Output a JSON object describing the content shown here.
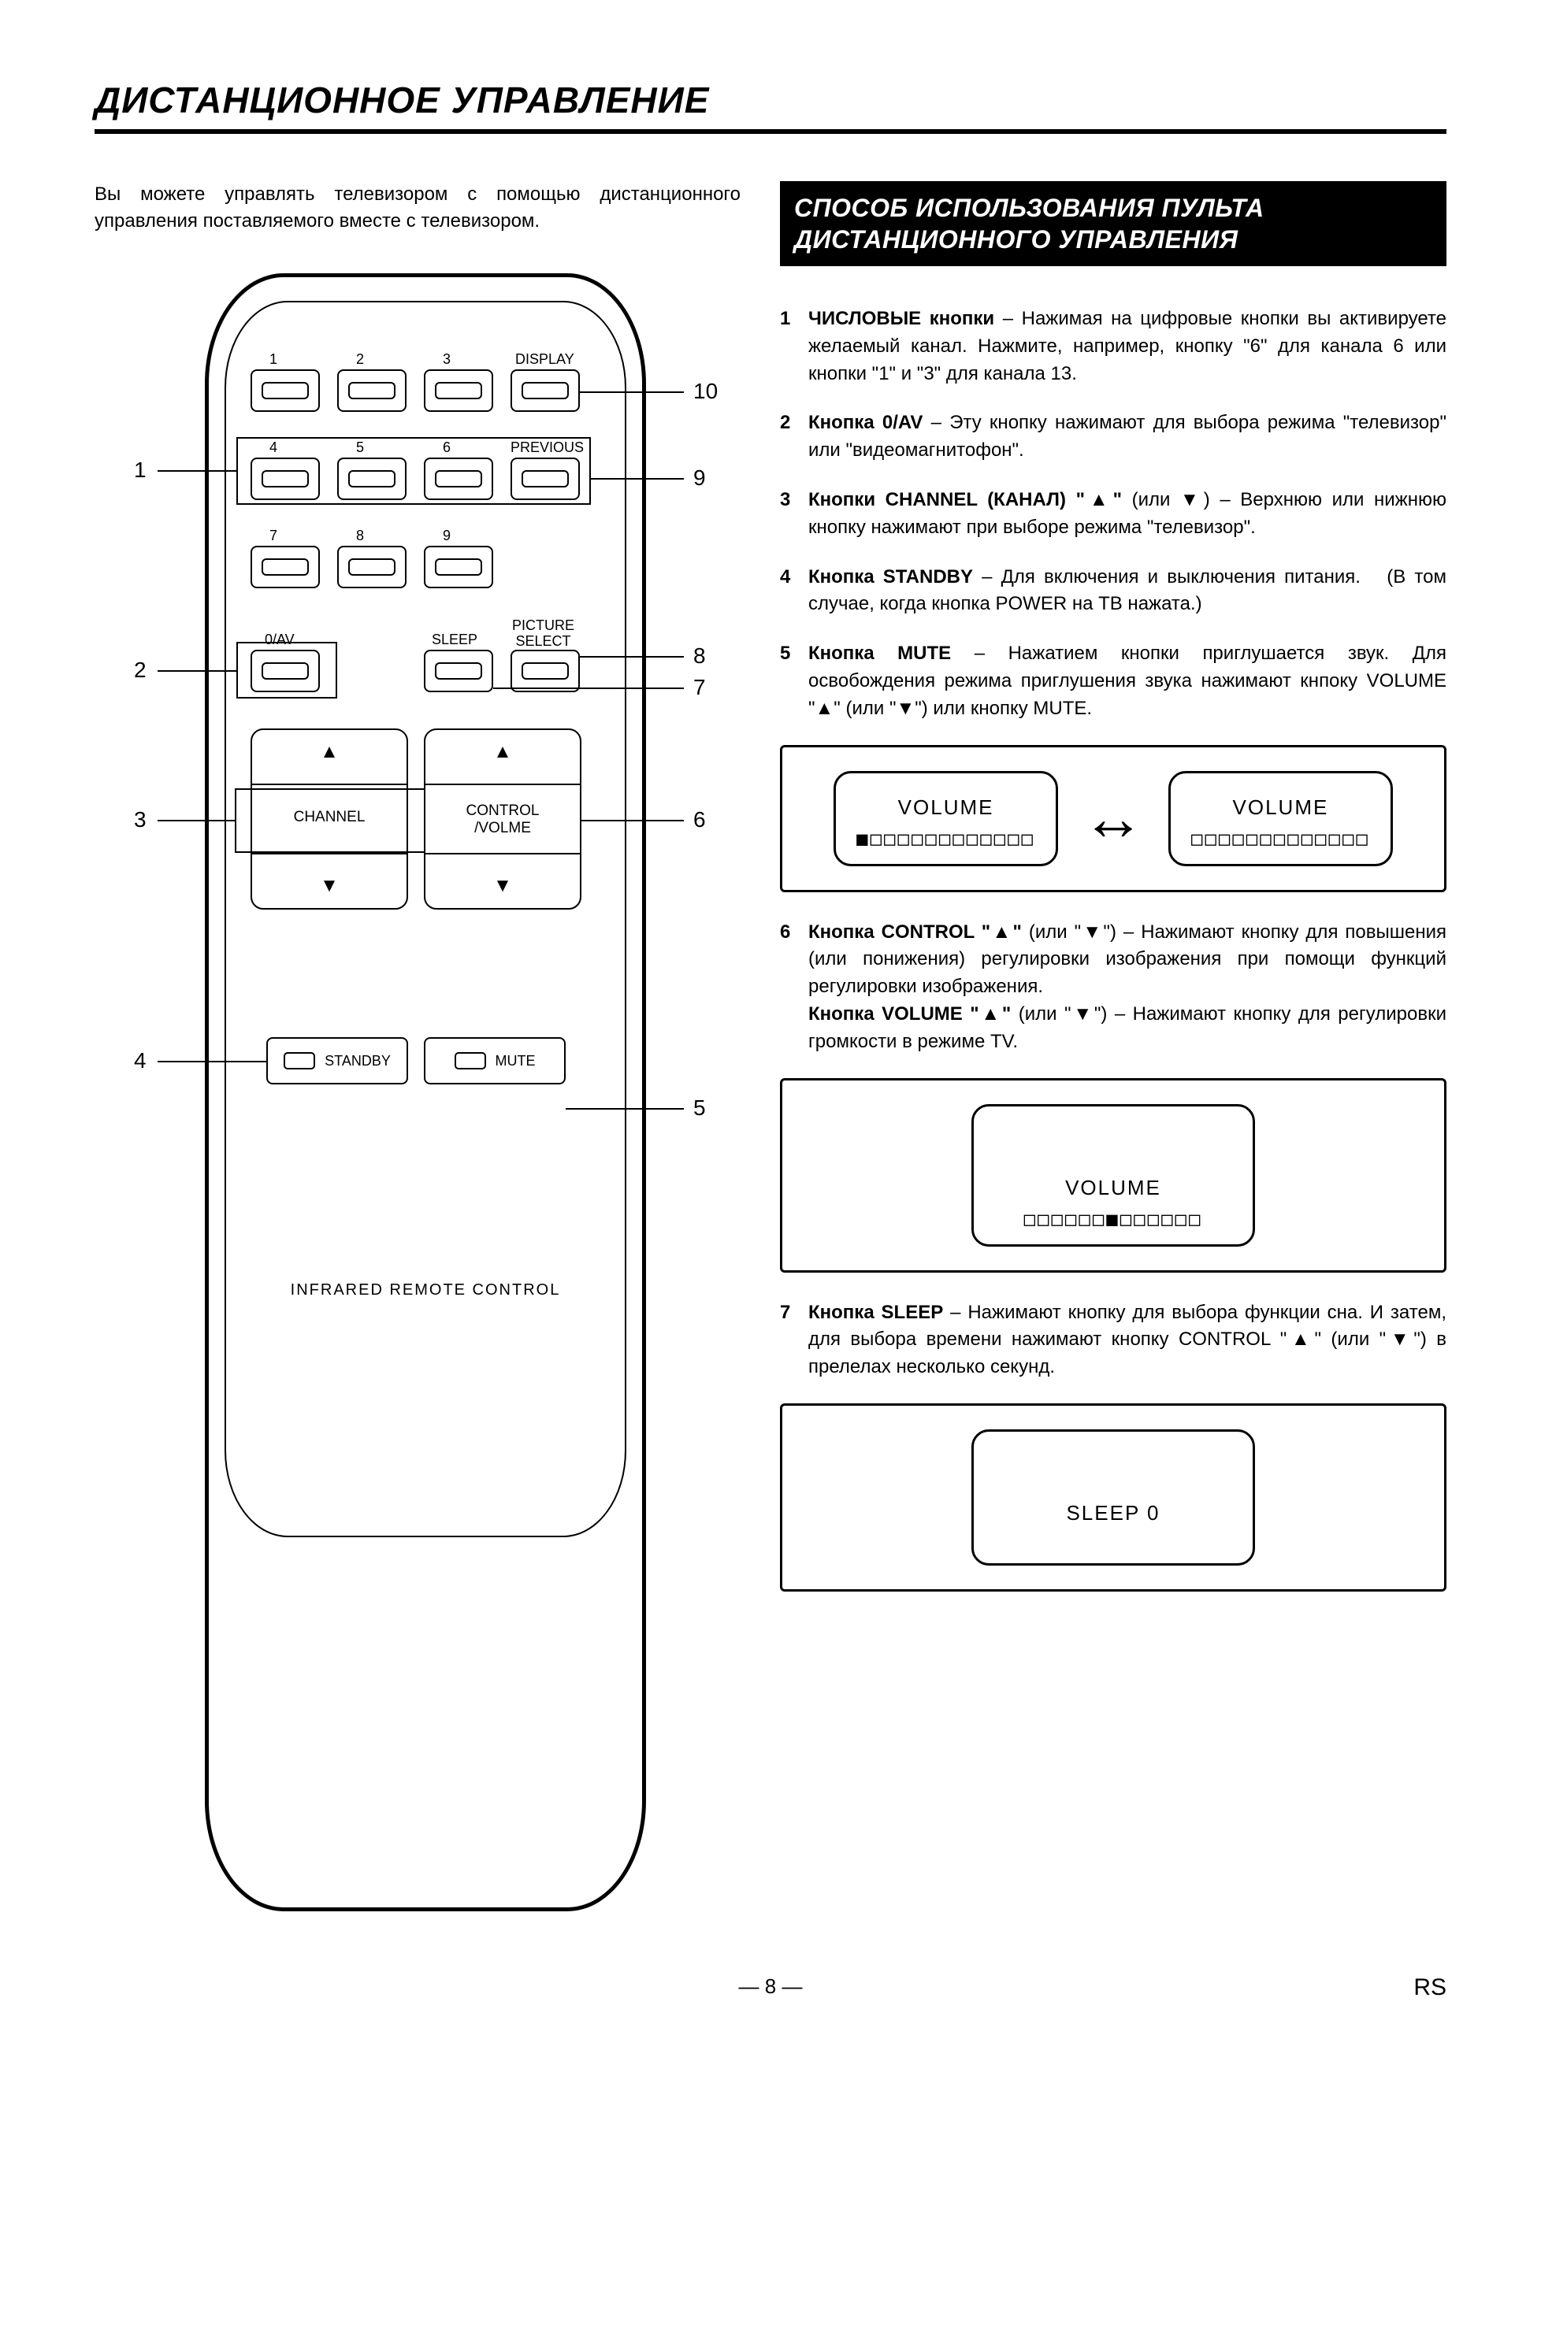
{
  "page": {
    "title": "ДИСТАНЦИОННОЕ УПРАВЛЕНИЕ",
    "intro": "Вы можете управлять телевизором с помощью дистанционного управления поставляемого вместе с телевизором.",
    "footer": "— 8 —",
    "rs": "RS"
  },
  "section": {
    "banner_line1": "СПОСОБ ИСПОЛЬЗОВАНИЯ ПУЛЬТА",
    "banner_line2": "ДИСТАНЦИОННОГО УПРАВЛЕНИЯ"
  },
  "remote": {
    "display": "DISPLAY",
    "previous": "PREVIOUS",
    "oav": "0/AV",
    "sleep": "SLEEP",
    "picture_select": "PICTURE\nSELECT",
    "channel": "CHANNEL",
    "control_volume": "CONTROL\n/VOLME",
    "standby": "STANDBY",
    "mute": "MUTE",
    "bottom": "INFRARED REMOTE CONTROL",
    "nums": {
      "n1": "1",
      "n2": "2",
      "n3": "3",
      "n4": "4",
      "n5": "5",
      "n6": "6",
      "n7": "7",
      "n8": "8",
      "n9": "9"
    }
  },
  "callouts": {
    "c1": "1",
    "c2": "2",
    "c3": "3",
    "c4": "4",
    "c5": "5",
    "c6": "6",
    "c7": "7",
    "c8": "8",
    "c9": "9",
    "c10": "10"
  },
  "items": {
    "i1_num": "1",
    "i1_html": "<b>ЧИСЛОВЫЕ кнопки</b> – Нажимая на цифровые кнопки вы активируете желаемый канал. Нажмите, например, кнопку \"6\" для канала 6 или кнопки \"1\" и \"3\" для канала 13.",
    "i2_num": "2",
    "i2_html": "<b>Кнопка 0/AV</b> – Эту кнопку нажимают для выбора режима \"телевизор\" или \"видеомагнитофон\".",
    "i3_num": "3",
    "i3_html": "<b>Кнопки CHANNEL (КАНАЛ) \"▲\"</b> (или ▼) – Верхнюю или нижнюю кнопку нажимают при выборе режима \"телевизор\".",
    "i4_num": "4",
    "i4_html": "<b>Кнопка STANDBY</b> – Для включения и выключения питания. &nbsp;&nbsp;(В том случае, когда кнопка POWER на ТВ нажата.)",
    "i5_num": "5",
    "i5_html": "<b>Кнопка MUTE</b> – Нажатием кнопки приглушается звук. Для освобождения режима приглушения звука нажимают кнпоку VOLUME \"▲\" (или \"▼\") или кнопку MUTE.",
    "i6_num": "6",
    "i6_html": "<b>Кнопка CONTROL \"▲\"</b> (или \"▼\") – Нажимают кнопку для повышения (или понижения) регулировки изображения при помощи функций регулировки изображения.<br><b>Кнопка VOLUME \"▲\"</b> (или \"▼\") – Нажимают кнопку для регулировки громкости в режиме TV.",
    "i7_num": "7",
    "i7_html": "<b>Кнопка SLEEP</b> – Нажимают кнопку для выбора фу­нкции сна. И затем, для выбора времени нажимают кнопку CONTROL \"▲\" (или \"▼\") в прелелах несколько секунд."
  },
  "osd": {
    "volume_label": "VOLUME",
    "bar_full": "■□□□□□□□□□□□□",
    "bar_empty": "□□□□□□□□□□□□□",
    "bar_mid": "□□□□□□■□□□□□□",
    "sleep_label": "SLEEP 0",
    "arrow": "⬌"
  }
}
